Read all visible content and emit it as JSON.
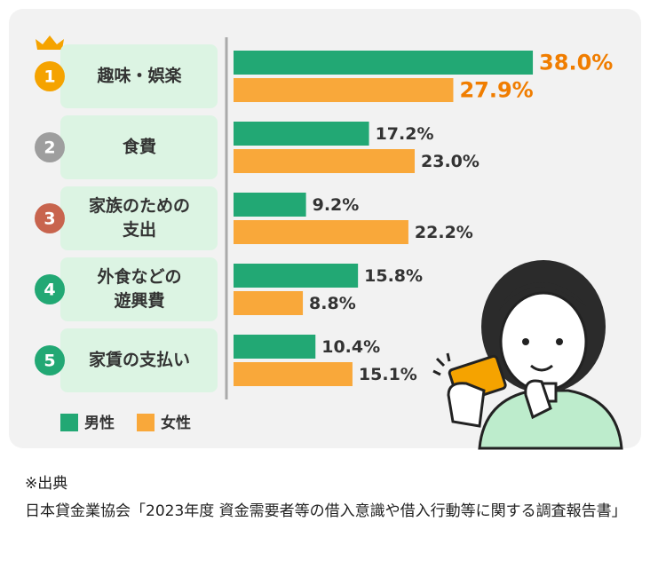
{
  "chart_data": {
    "type": "bar",
    "orientation": "horizontal",
    "ranks": [
      "1",
      "2",
      "3",
      "4",
      "5"
    ],
    "rank_colors": [
      "#f5a300",
      "#9e9e9e",
      "#c8644e",
      "#22a874",
      "#22a874"
    ],
    "categories": [
      [
        "趣味・娯楽"
      ],
      [
        "食費"
      ],
      [
        "家族のための",
        "支出"
      ],
      [
        "外食などの",
        "遊興費"
      ],
      [
        "家賃の支払い"
      ]
    ],
    "series": [
      {
        "name": "男性",
        "color": "#22a874",
        "values": [
          38.0,
          17.2,
          9.2,
          15.8,
          10.4
        ],
        "value_labels": [
          "38.0%",
          "17.2%",
          "9.2%",
          "15.8%",
          "10.4%"
        ]
      },
      {
        "name": "女性",
        "color": "#f9a83a",
        "values": [
          27.9,
          23.0,
          22.2,
          8.8,
          15.1
        ],
        "value_labels": [
          "27.9%",
          "23.0%",
          "22.2%",
          "8.8%",
          "15.1%"
        ]
      }
    ],
    "source_title": "※出典",
    "source": "日本貸金業協会「2023年度 資金需要者等の借入意識や借入行動等に関する調査報告書」"
  }
}
